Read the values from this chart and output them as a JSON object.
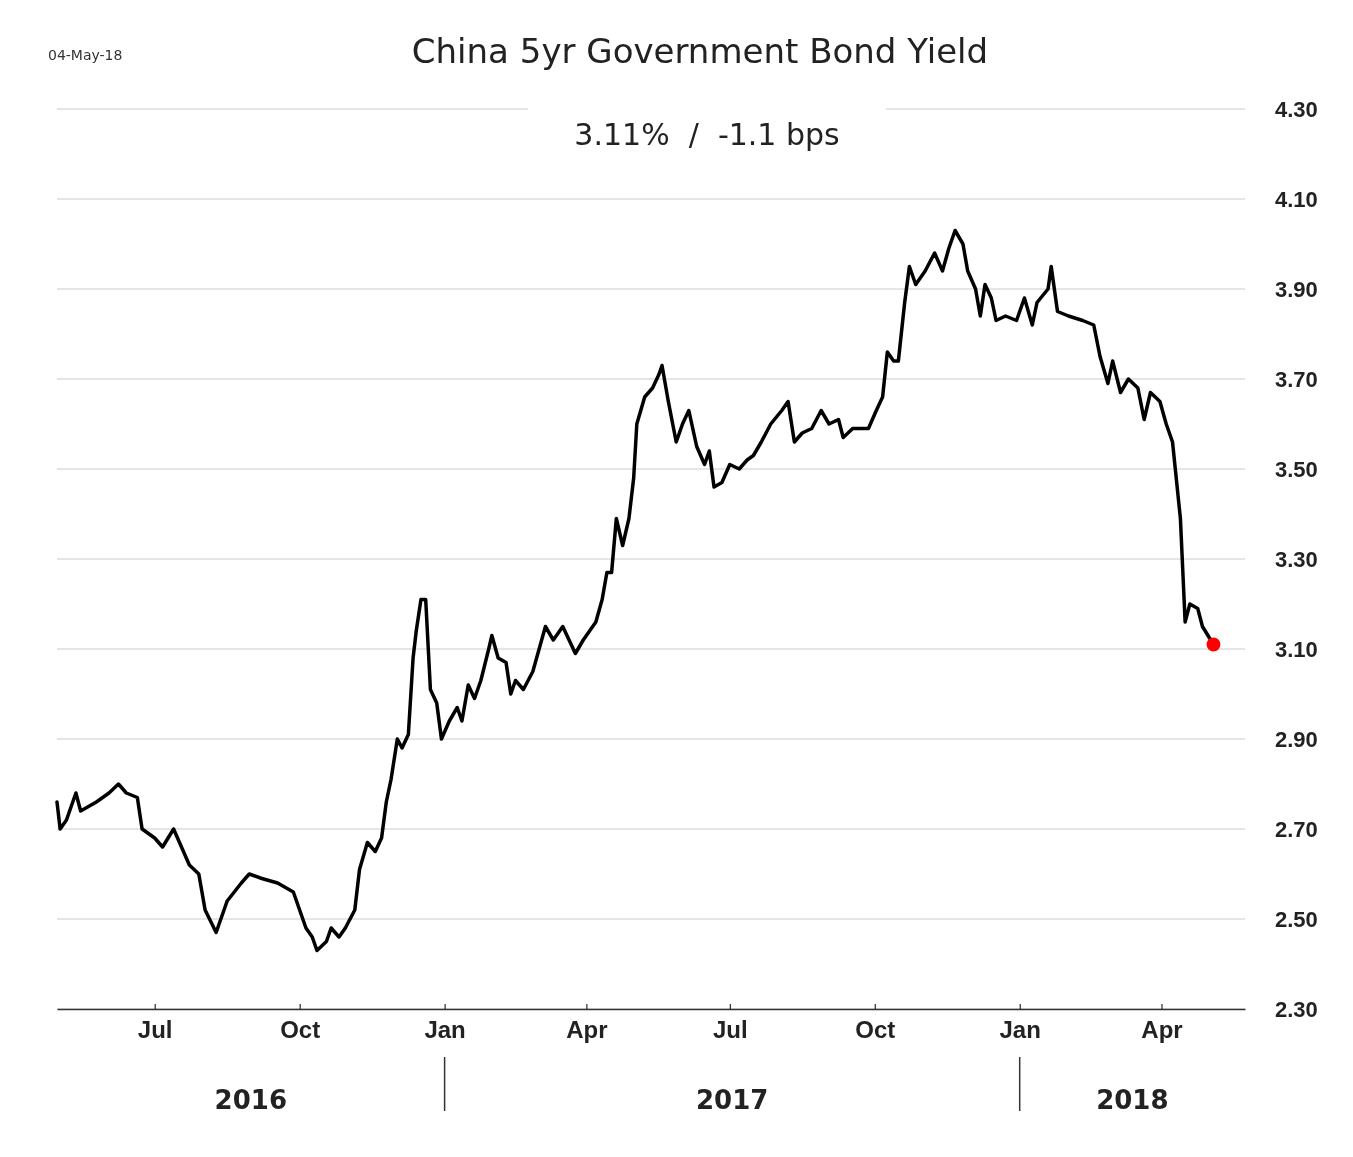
{
  "chart_data": {
    "type": "line",
    "title": "China 5yr Government Bond Yield",
    "subtitle": "3.11%  /  -1.1 bps",
    "annotations": [
      "04-May-18",
      "2016",
      "2017",
      "2018"
    ],
    "xlim": [
      "2016-04-30",
      "2018-05-24"
    ],
    "xticks": [
      {
        "value": "2016-07-01",
        "label": "Jul"
      },
      {
        "value": "2016-10-01",
        "label": "Oct"
      },
      {
        "value": "2017-01-01",
        "label": "Jan"
      },
      {
        "value": "2017-04-01",
        "label": "Apr"
      },
      {
        "value": "2017-07-01",
        "label": "Jul"
      },
      {
        "value": "2017-10-01",
        "label": "Oct"
      },
      {
        "value": "2018-01-01",
        "label": "Jan"
      },
      {
        "value": "2018-04-01",
        "label": "Apr"
      }
    ],
    "ylim": [
      2.3,
      4.3
    ],
    "yticks": [
      {
        "value": 2.3,
        "label": "2.30"
      },
      {
        "value": 2.5,
        "label": "2.50"
      },
      {
        "value": 2.7,
        "label": "2.70"
      },
      {
        "value": 2.9,
        "label": "2.90"
      },
      {
        "value": 3.1,
        "label": "3.10"
      },
      {
        "value": 3.3,
        "label": "3.30"
      },
      {
        "value": 3.5,
        "label": "3.50"
      },
      {
        "value": 3.7,
        "label": "3.70"
      },
      {
        "value": 3.9,
        "label": "3.90"
      },
      {
        "value": 4.1,
        "label": "4.10"
      },
      {
        "value": 4.3,
        "label": "4.30"
      }
    ],
    "grid": "y",
    "marker": "none",
    "line_style": "solid",
    "series": [
      {
        "type": "line",
        "color": "#000000",
        "x": [
          "2016-04-30",
          "2016-05-02",
          "2016-05-06",
          "2016-05-12",
          "2016-05-15",
          "2016-05-25",
          "2016-06-02",
          "2016-06-08",
          "2016-06-13",
          "2016-06-20",
          "2016-06-23",
          "2016-07-01",
          "2016-07-06",
          "2016-07-13",
          "2016-07-18",
          "2016-07-23",
          "2016-07-29",
          "2016-08-02",
          "2016-08-09",
          "2016-08-16",
          "2016-08-25",
          "2016-08-30",
          "2016-09-07",
          "2016-09-17",
          "2016-09-27",
          "2016-10-01",
          "2016-10-05",
          "2016-10-09",
          "2016-10-12",
          "2016-10-18",
          "2016-10-21",
          "2016-10-26",
          "2016-10-30",
          "2016-11-05",
          "2016-11-08",
          "2016-11-13",
          "2016-11-18",
          "2016-11-22",
          "2016-11-25",
          "2016-11-28",
          "2016-12-02",
          "2016-12-05",
          "2016-12-09",
          "2016-12-12",
          "2016-12-14",
          "2016-12-17",
          "2016-12-20",
          "2016-12-23",
          "2016-12-27",
          "2016-12-30",
          "2017-01-04",
          "2017-01-09",
          "2017-01-12",
          "2017-01-16",
          "2017-01-20",
          "2017-01-24",
          "2017-01-29",
          "2017-01-31",
          "2017-02-04",
          "2017-02-09",
          "2017-02-12",
          "2017-02-15",
          "2017-02-20",
          "2017-02-26",
          "2017-03-06",
          "2017-03-11",
          "2017-03-17",
          "2017-03-25",
          "2017-03-30",
          "2017-04-07",
          "2017-04-11",
          "2017-04-14",
          "2017-04-17",
          "2017-04-20",
          "2017-04-24",
          "2017-04-28",
          "2017-05-01",
          "2017-05-03",
          "2017-05-08",
          "2017-05-13",
          "2017-05-17",
          "2017-05-19",
          "2017-05-23",
          "2017-05-28",
          "2017-06-01",
          "2017-06-05",
          "2017-06-10",
          "2017-06-15",
          "2017-06-18",
          "2017-06-21",
          "2017-06-26",
          "2017-07-01",
          "2017-07-07",
          "2017-07-12",
          "2017-07-16",
          "2017-07-21",
          "2017-07-27",
          "2017-08-03",
          "2017-08-07",
          "2017-08-11",
          "2017-08-16",
          "2017-08-22",
          "2017-08-28",
          "2017-09-02",
          "2017-09-08",
          "2017-09-11",
          "2017-09-17",
          "2017-09-23",
          "2017-09-27",
          "2017-10-02",
          "2017-10-06",
          "2017-10-09",
          "2017-10-13",
          "2017-10-16",
          "2017-10-20",
          "2017-10-23",
          "2017-10-27",
          "2017-11-02",
          "2017-11-08",
          "2017-11-13",
          "2017-11-17",
          "2017-11-21",
          "2017-11-26",
          "2017-11-29",
          "2017-12-04",
          "2017-12-07",
          "2017-12-10",
          "2017-12-14",
          "2017-12-17",
          "2017-12-23",
          "2017-12-30",
          "2018-01-04",
          "2018-01-09",
          "2018-01-12",
          "2018-01-19",
          "2018-01-21",
          "2018-01-25",
          "2018-02-01",
          "2018-02-10",
          "2018-02-17",
          "2018-02-21",
          "2018-02-26",
          "2018-03-01",
          "2018-03-06",
          "2018-03-11",
          "2018-03-17",
          "2018-03-21",
          "2018-03-25",
          "2018-03-31",
          "2018-04-04",
          "2018-04-08",
          "2018-04-13",
          "2018-04-16",
          "2018-04-19",
          "2018-04-24",
          "2018-04-27",
          "2018-05-04"
        ],
        "values": [
          2.76,
          2.7,
          2.72,
          2.78,
          2.74,
          2.76,
          2.78,
          2.8,
          2.78,
          2.77,
          2.7,
          2.68,
          2.66,
          2.7,
          2.66,
          2.62,
          2.6,
          2.52,
          2.47,
          2.54,
          2.58,
          2.6,
          2.59,
          2.58,
          2.56,
          2.52,
          2.48,
          2.46,
          2.43,
          2.45,
          2.48,
          2.46,
          2.48,
          2.52,
          2.61,
          2.67,
          2.65,
          2.68,
          2.76,
          2.81,
          2.9,
          2.88,
          2.91,
          3.08,
          3.14,
          3.21,
          3.21,
          3.01,
          2.98,
          2.9,
          2.94,
          2.97,
          2.94,
          3.02,
          2.99,
          3.03,
          3.1,
          3.13,
          3.08,
          3.07,
          3.0,
          3.03,
          3.01,
          3.05,
          3.15,
          3.12,
          3.15,
          3.09,
          3.12,
          3.16,
          3.21,
          3.27,
          3.27,
          3.39,
          3.33,
          3.39,
          3.48,
          3.6,
          3.66,
          3.68,
          3.71,
          3.73,
          3.65,
          3.56,
          3.6,
          3.63,
          3.55,
          3.51,
          3.54,
          3.46,
          3.47,
          3.51,
          3.5,
          3.52,
          3.53,
          3.56,
          3.6,
          3.63,
          3.65,
          3.56,
          3.58,
          3.59,
          3.63,
          3.6,
          3.61,
          3.57,
          3.59,
          3.59,
          3.59,
          3.63,
          3.66,
          3.76,
          3.74,
          3.74,
          3.87,
          3.95,
          3.91,
          3.94,
          3.98,
          3.94,
          3.99,
          4.03,
          4.0,
          3.94,
          3.9,
          3.84,
          3.91,
          3.88,
          3.83,
          3.84,
          3.83,
          3.88,
          3.82,
          3.87,
          3.9,
          3.95,
          3.85,
          3.84,
          3.83,
          3.82,
          3.75,
          3.69,
          3.74,
          3.67,
          3.7,
          3.68,
          3.61,
          3.67,
          3.65,
          3.6,
          3.56,
          3.39,
          3.16,
          3.2,
          3.19,
          3.15,
          3.11
        ]
      },
      {
        "type": "scatter",
        "color": "#ff0000",
        "marker": "circle",
        "x": [
          "2018-05-04"
        ],
        "values": [
          3.11
        ]
      }
    ]
  }
}
